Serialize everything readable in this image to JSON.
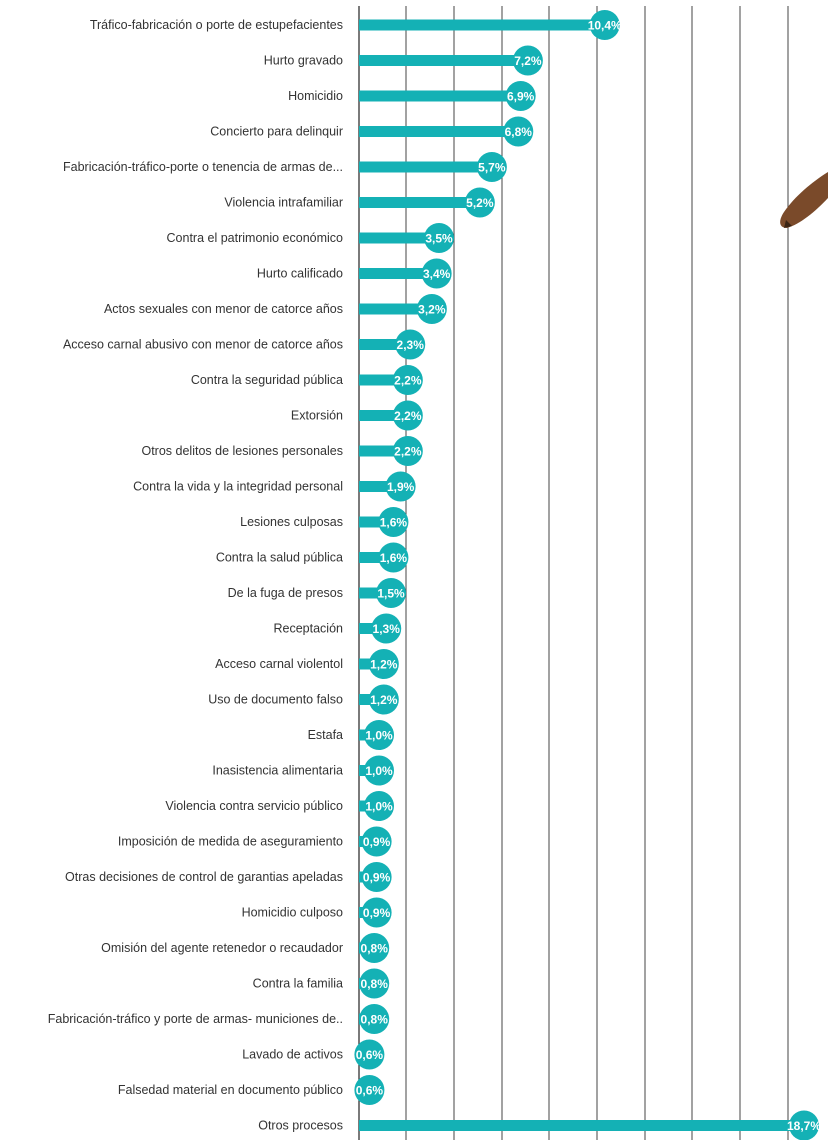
{
  "chart_data": {
    "type": "bar",
    "orientation": "horizontal",
    "title": "",
    "xlabel": "",
    "ylabel": "",
    "xlim": [
      0,
      18.7
    ],
    "grid": true,
    "legend": "none",
    "colors": {
      "bar": "#14b1b5",
      "marker": "#14b1b5",
      "label_text": "#ffffff",
      "category_text": "#333333"
    },
    "categories": [
      "Tráfico-fabricación o porte de estupefacientes",
      "Hurto gravado",
      "Homicidio",
      "Concierto para delinquir",
      "Fabricación-tráfico-porte o tenencia de armas de...",
      "Violencia intrafamiliar",
      "Contra el patrimonio económico",
      "Hurto calificado",
      "Actos sexuales con menor de catorce años",
      "Acceso carnal abusivo  con menor de catorce años",
      "Contra la seguridad pública",
      "Extorsión",
      "Otros delitos de lesiones personales",
      "Contra la vida y la integridad personal",
      "Lesiones culposas",
      "Contra la salud pública",
      "De la fuga de presos",
      "Receptación",
      "Acceso carnal violentol",
      "Uso de documento falso",
      "Estafa",
      "Inasistencia alimentaria",
      "Violencia contra servicio público",
      "Imposición de medida de aseguramiento",
      "Otras decisiones de control de garantias apeladas",
      "Homicidio culposo",
      "Omisión del agente retenedor o recaudador",
      "Contra la familia",
      "Fabricación-tráfico y porte de armas- municiones de..",
      "Lavado de activos",
      "Falsedad material en documento público",
      "Otros procesos"
    ],
    "values": [
      10.4,
      7.2,
      6.9,
      6.8,
      5.7,
      5.2,
      3.5,
      3.4,
      3.2,
      2.3,
      2.2,
      2.2,
      2.2,
      1.9,
      1.6,
      1.6,
      1.5,
      1.3,
      1.2,
      1.2,
      1.0,
      1.0,
      1.0,
      0.9,
      0.9,
      0.9,
      0.8,
      0.8,
      0.8,
      0.6,
      0.6,
      18.7
    ],
    "value_labels": [
      "10,4%",
      "7,2%",
      "6,9%",
      "6,8%",
      "5,7%",
      "5,2%",
      "3,5%",
      "3,4%",
      "3,2%",
      "2,3%",
      "2,2%",
      "2,2%",
      "2,2%",
      "1,9%",
      "1,6%",
      "1,6%",
      "1,5%",
      "1,3%",
      "1,2%",
      "1,2%",
      "1,0%",
      "1,0%",
      "1,0%",
      "0,9%",
      "0,9%",
      "0,9%",
      "0,8%",
      "0,8%",
      "0,8%",
      "0,6%",
      "0,6%",
      "18,7%"
    ]
  },
  "decoration": {
    "icon": "pencil-tip-icon",
    "color": "#7a4a2a"
  }
}
